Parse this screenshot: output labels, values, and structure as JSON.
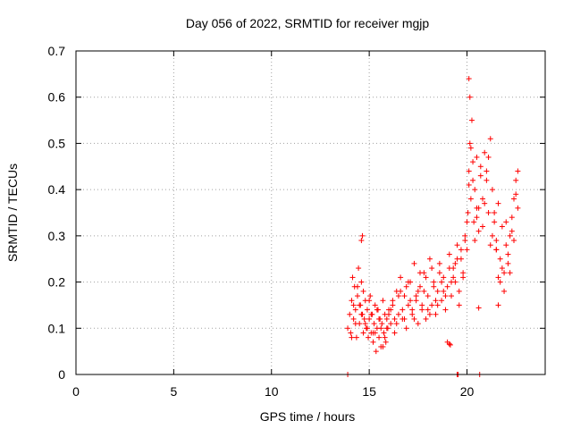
{
  "chart_data": {
    "type": "scatter",
    "title": "Day 056 of 2022, SRMTID for receiver mgjp",
    "xlabel": "GPS time / hours",
    "ylabel": "SRMTID / TECUs",
    "xlim": [
      0,
      24
    ],
    "ylim": [
      0,
      0.7
    ],
    "xticks": [
      0,
      5,
      10,
      15,
      20
    ],
    "yticks": [
      0,
      0.1,
      0.2,
      0.3,
      0.4,
      0.5,
      0.6,
      0.7
    ],
    "ytick_labels": [
      "0",
      "0.1",
      "0.2",
      "0.3",
      "0.4",
      "0.5",
      "0.6",
      "0.7"
    ],
    "grid": true,
    "marker": "+",
    "color": "#ff0000",
    "series": [
      {
        "name": "SRMTID",
        "x": [
          13.9,
          14.0,
          14.05,
          14.1,
          14.15,
          14.2,
          14.25,
          14.3,
          14.35,
          14.4,
          14.45,
          14.5,
          14.55,
          14.6,
          14.65,
          14.7,
          14.75,
          14.8,
          14.85,
          14.9,
          14.95,
          15.0,
          15.05,
          15.1,
          15.15,
          15.2,
          15.25,
          15.3,
          15.35,
          15.4,
          15.45,
          15.5,
          15.55,
          15.6,
          15.65,
          15.7,
          15.75,
          15.8,
          15.85,
          15.9,
          15.95,
          16.0,
          16.1,
          16.2,
          16.3,
          16.4,
          16.5,
          16.6,
          16.7,
          16.8,
          16.9,
          17.0,
          17.1,
          17.2,
          17.3,
          17.4,
          17.5,
          17.6,
          17.7,
          17.8,
          17.9,
          18.0,
          18.1,
          18.2,
          18.3,
          18.4,
          18.5,
          18.6,
          18.7,
          18.8,
          18.9,
          19.0,
          19.1,
          19.2,
          19.3,
          19.4,
          19.5,
          19.6,
          19.7,
          19.8,
          19.9,
          20.0,
          20.05,
          20.1,
          20.15,
          20.2,
          20.25,
          20.3,
          20.35,
          20.4,
          20.5,
          20.6,
          20.7,
          20.8,
          20.9,
          21.0,
          21.1,
          21.2,
          21.3,
          21.4,
          21.5,
          21.6,
          21.7,
          21.8,
          21.9,
          22.0,
          22.1,
          22.2,
          22.3,
          22.4,
          22.5,
          22.6,
          14.1,
          14.3,
          14.5,
          14.7,
          14.9,
          15.1,
          15.3,
          15.5,
          15.7,
          15.9,
          16.1,
          16.3,
          16.5,
          16.7,
          16.9,
          17.1,
          17.3,
          17.5,
          17.7,
          17.9,
          18.1,
          18.3,
          18.5,
          18.7,
          18.9,
          19.1,
          19.3,
          19.5,
          19.7,
          19.9,
          20.1,
          20.3,
          20.5,
          20.7,
          20.9,
          21.1,
          21.3,
          21.5,
          21.7,
          21.9,
          22.1,
          22.3,
          22.5,
          14.2,
          14.4,
          14.6,
          14.8,
          15.0,
          15.2,
          15.4,
          15.6,
          15.8,
          16.0,
          16.2,
          16.4,
          16.6,
          16.8,
          17.0,
          17.2,
          17.4,
          17.6,
          17.8,
          18.0,
          18.2,
          18.4,
          18.6,
          18.8,
          19.0,
          19.2,
          19.4,
          19.6,
          19.8,
          20.0,
          20.2,
          20.4,
          20.6,
          20.8,
          21.0,
          21.2,
          21.4,
          21.6,
          21.8,
          22.0,
          22.2,
          22.4,
          22.6,
          14.6,
          14.65,
          20.1,
          20.15,
          19.1,
          19.15,
          20.6,
          21.5,
          21.6,
          20.5,
          13.9,
          19.5,
          19.55,
          20.65
        ],
        "y": [
          0.1,
          0.13,
          0.09,
          0.16,
          0.21,
          0.12,
          0.19,
          0.14,
          0.08,
          0.17,
          0.23,
          0.11,
          0.15,
          0.2,
          0.13,
          0.09,
          0.12,
          0.16,
          0.1,
          0.14,
          0.08,
          0.12,
          0.17,
          0.09,
          0.13,
          0.07,
          0.11,
          0.15,
          0.05,
          0.1,
          0.14,
          0.08,
          0.12,
          0.06,
          0.11,
          0.16,
          0.09,
          0.13,
          0.07,
          0.12,
          0.1,
          0.14,
          0.11,
          0.16,
          0.09,
          0.18,
          0.13,
          0.21,
          0.12,
          0.17,
          0.1,
          0.15,
          0.2,
          0.13,
          0.24,
          0.16,
          0.11,
          0.19,
          0.14,
          0.22,
          0.12,
          0.17,
          0.25,
          0.15,
          0.2,
          0.13,
          0.18,
          0.24,
          0.16,
          0.21,
          0.14,
          0.19,
          0.26,
          0.17,
          0.23,
          0.2,
          0.28,
          0.18,
          0.25,
          0.22,
          0.3,
          0.27,
          0.35,
          0.44,
          0.5,
          0.38,
          0.55,
          0.42,
          0.33,
          0.4,
          0.36,
          0.31,
          0.45,
          0.38,
          0.48,
          0.42,
          0.35,
          0.51,
          0.4,
          0.33,
          0.29,
          0.37,
          0.25,
          0.32,
          0.22,
          0.28,
          0.24,
          0.3,
          0.34,
          0.38,
          0.42,
          0.36,
          0.08,
          0.11,
          0.15,
          0.18,
          0.1,
          0.13,
          0.09,
          0.12,
          0.06,
          0.1,
          0.14,
          0.12,
          0.17,
          0.14,
          0.19,
          0.16,
          0.12,
          0.18,
          0.15,
          0.21,
          0.13,
          0.19,
          0.15,
          0.2,
          0.17,
          0.23,
          0.21,
          0.25,
          0.27,
          0.29,
          0.41,
          0.46,
          0.34,
          0.43,
          0.37,
          0.47,
          0.3,
          0.27,
          0.2,
          0.18,
          0.26,
          0.31,
          0.39,
          0.15,
          0.19,
          0.13,
          0.11,
          0.16,
          0.09,
          0.14,
          0.1,
          0.08,
          0.13,
          0.15,
          0.11,
          0.18,
          0.12,
          0.2,
          0.14,
          0.17,
          0.22,
          0.18,
          0.14,
          0.23,
          0.16,
          0.22,
          0.18,
          0.07,
          0.2,
          0.24,
          0.15,
          0.21,
          0.33,
          0.49,
          0.29,
          0.36,
          0.32,
          0.44,
          0.28,
          0.35,
          0.21,
          0.23,
          0.33,
          0.22,
          0.29,
          0.44,
          0.29,
          0.3,
          0.64,
          0.6,
          0.066,
          0.064,
          0.144,
          0.27,
          0.15,
          0.47,
          0.0,
          0.0,
          0.0,
          0.0
        ]
      }
    ]
  }
}
